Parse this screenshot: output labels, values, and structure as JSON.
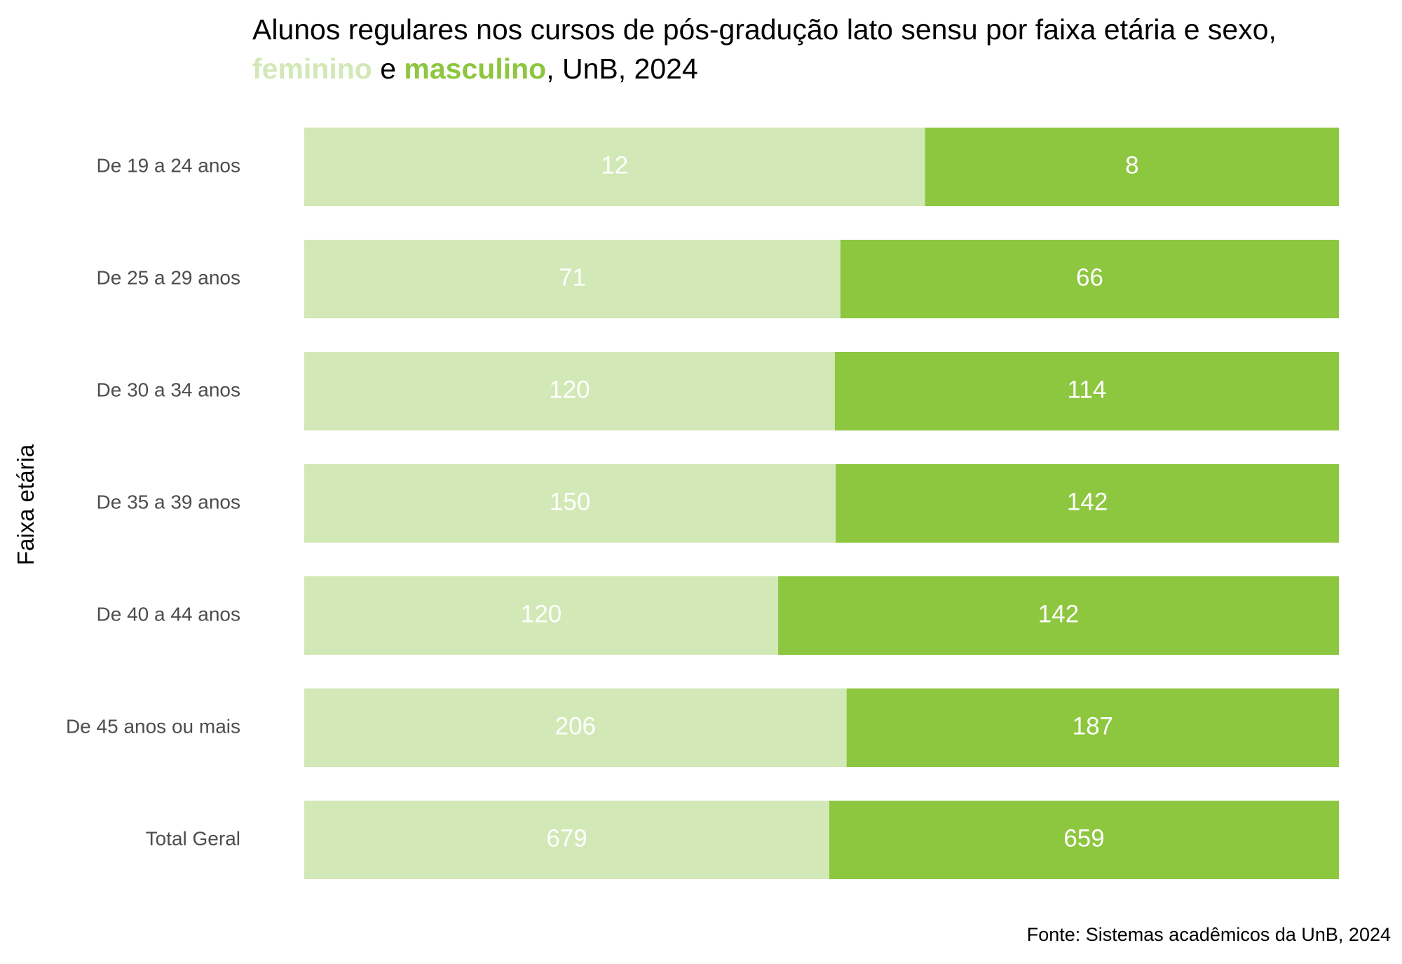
{
  "chart_data": {
    "type": "bar",
    "orientation": "horizontal",
    "stacked": "percent",
    "title_line1": "Alunos regulares nos cursos de pós-gradução lato sensu por faixa etária e sexo,",
    "title_line2": {
      "series1": "feminino",
      "connector": " e ",
      "series2": "masculino",
      "suffix": ", UnB, 2024"
    },
    "ylabel": "Faixa etária",
    "xlabel": "",
    "caption": "Fonte: Sistemas acadêmicos da UnB, 2024",
    "grid": false,
    "legend": "none",
    "categories": [
      "De 19 a 24 anos",
      "De 25 a 29 anos",
      "De 30 a 34 anos",
      "De 35 a 39 anos",
      "De 40 a 44 anos",
      "De 45 anos ou mais",
      "Total Geral"
    ],
    "series": [
      {
        "name": "feminino",
        "color": "#d2e8b6",
        "values": [
          12,
          71,
          120,
          150,
          120,
          206,
          679
        ]
      },
      {
        "name": "masculino",
        "color": "#8dc63f",
        "values": [
          8,
          66,
          114,
          142,
          142,
          187,
          659
        ]
      }
    ]
  }
}
